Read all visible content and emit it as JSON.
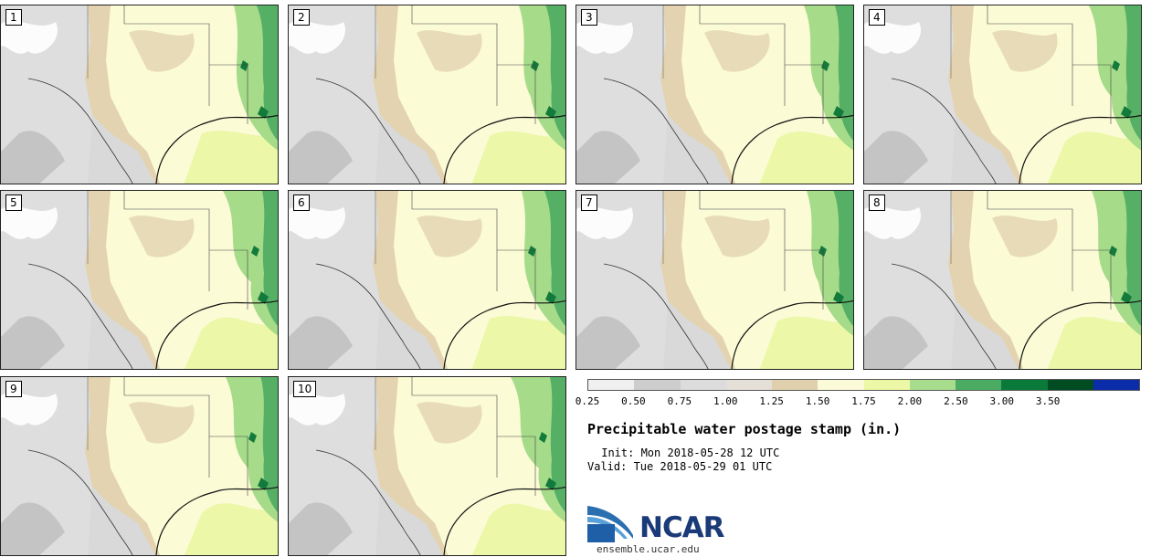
{
  "title": "Precipitable water postage stamp (in.)",
  "init_time": " Init: Mon 2018-05-28 12 UTC",
  "valid_time": "Valid: Tue 2018-05-29 01 UTC",
  "logo": {
    "name": "NCAR",
    "url": "ensemble.ucar.edu"
  },
  "panels": [
    {
      "label": "1"
    },
    {
      "label": "2"
    },
    {
      "label": "3"
    },
    {
      "label": "4"
    },
    {
      "label": "5"
    },
    {
      "label": "6"
    },
    {
      "label": "7"
    },
    {
      "label": "8"
    },
    {
      "label": "9"
    },
    {
      "label": "10"
    }
  ],
  "colorbar": {
    "ticks": [
      "0.25",
      "0.50",
      "0.75",
      "1.00",
      "1.25",
      "1.50",
      "1.75",
      "2.00",
      "2.50",
      "3.00",
      "3.50"
    ],
    "colors": [
      "#f0f0f0",
      "#cdcdcd",
      "#dcdcdc",
      "#e4e0d8",
      "#e0d0ad",
      "#fbfbd9",
      "#edf8a7",
      "#a8dd8e",
      "#4aab62",
      "#0a7a3a",
      "#004c22",
      "#0a2ca8"
    ]
  },
  "palette": {
    "land_gray": "#d9d9d9",
    "dark_gray": "#c4c4c4",
    "tan": "#e3d3b0",
    "cream": "#fbfbd6",
    "lime": "#ecf7a8",
    "green_light": "#a6db8a",
    "green_mid": "#55b066",
    "green_dark": "#127a3a"
  }
}
